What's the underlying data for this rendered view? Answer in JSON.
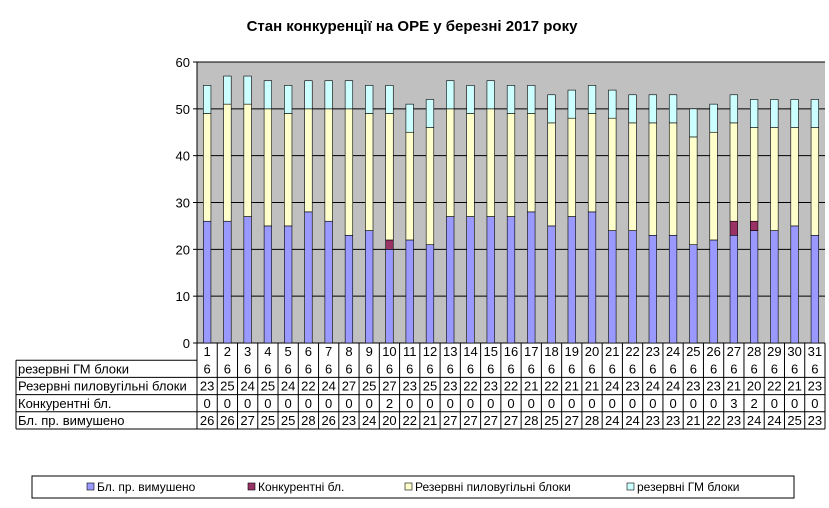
{
  "chart_data": {
    "type": "bar",
    "stacked": true,
    "title": "Стан конкуренції на ОРЕ  у березні 2017 року",
    "categories": [
      "1",
      "2",
      "3",
      "4",
      "5",
      "6",
      "7",
      "8",
      "9",
      "10",
      "11",
      "12",
      "13",
      "14",
      "15",
      "16",
      "17",
      "18",
      "19",
      "20",
      "21",
      "22",
      "23",
      "24",
      "25",
      "26",
      "27",
      "28",
      "29",
      "30",
      "31"
    ],
    "ylim": [
      0,
      60
    ],
    "yticks": [
      "0",
      "10",
      "20",
      "30",
      "40",
      "50",
      "60"
    ],
    "grid": true,
    "legend_position": "bottom",
    "series": [
      {
        "name": "Бл. пр. вимушено",
        "color": "#9999FF",
        "values": [
          26,
          26,
          27,
          25,
          25,
          28,
          26,
          23,
          24,
          20,
          22,
          21,
          27,
          27,
          27,
          27,
          28,
          25,
          27,
          28,
          24,
          24,
          23,
          23,
          21,
          22,
          23,
          24,
          24,
          25,
          23
        ],
        "labels": [
          "26",
          "26",
          "27",
          "25",
          "25",
          "28",
          "26",
          "23",
          "24",
          "20",
          "22",
          "21",
          "27",
          "27",
          "27",
          "27",
          "28",
          "25",
          "27",
          "28",
          "24",
          "24",
          "23",
          "23",
          "21",
          "22",
          "23",
          "24",
          "24",
          "25",
          "23"
        ]
      },
      {
        "name": "Конкурентні бл.",
        "color": "#993366",
        "values": [
          0,
          0,
          0,
          0,
          0,
          0,
          0,
          0,
          0,
          2,
          0,
          0,
          0,
          0,
          0,
          0,
          0,
          0,
          0,
          0,
          0,
          0,
          0,
          0,
          0,
          0,
          3,
          2,
          0,
          0,
          0
        ],
        "labels": [
          "0",
          "0",
          "0",
          "0",
          "0",
          "0",
          "0",
          "0",
          "0",
          "2",
          "0",
          "0",
          "0",
          "0",
          "0",
          "0",
          "0",
          "0",
          "0",
          "0",
          "0",
          "0",
          "0",
          "0",
          "0",
          "0",
          "3",
          "2",
          "0",
          "0",
          "0"
        ]
      },
      {
        "name": "Резервні пиловугільні  блоки",
        "table_label": "Резервні пиловугільні блоки",
        "color": "#FFFFCC",
        "values": [
          23,
          25,
          24,
          25,
          24,
          22,
          24,
          27,
          25,
          27,
          23,
          25,
          23,
          22,
          23,
          22,
          21,
          22,
          21,
          21,
          24,
          23,
          24,
          24,
          23,
          23,
          21,
          20,
          22,
          21,
          23
        ],
        "labels": [
          "23",
          "25",
          "24",
          "25",
          "24",
          "22",
          "24",
          "27",
          "25",
          "27",
          "23",
          "25",
          "23",
          "22",
          "23",
          "22",
          "21",
          "22",
          "21",
          "21",
          "24",
          "23",
          "24",
          "24",
          "23",
          "23",
          "21",
          "20",
          "22",
          "21",
          "23"
        ]
      },
      {
        "name": "резервні ГМ блоки",
        "color": "#CCFFFF",
        "values": [
          6,
          6,
          6,
          6,
          6,
          6,
          6,
          6,
          6,
          6,
          6,
          6,
          6,
          6,
          6,
          6,
          6,
          6,
          6,
          6,
          6,
          6,
          6,
          6,
          6,
          6,
          6,
          6,
          6,
          6,
          6
        ],
        "labels": [
          "6",
          "6",
          "6",
          "6",
          "6",
          "6",
          "6",
          "6",
          "6",
          "6",
          "6",
          "6",
          "6",
          "6",
          "6",
          "6",
          "6",
          "6",
          "6",
          "6",
          "6",
          "6",
          "6",
          "6",
          "6",
          "6",
          "6",
          "6",
          "6",
          "6",
          "6"
        ]
      }
    ]
  }
}
